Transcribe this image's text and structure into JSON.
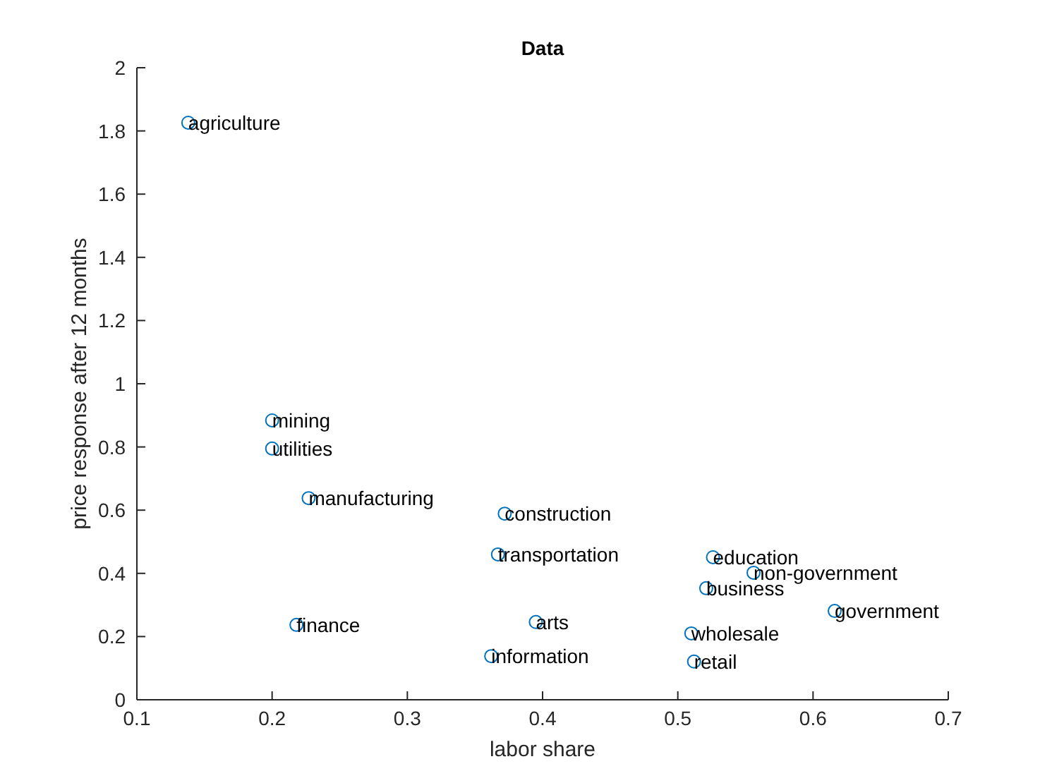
{
  "chart_data": {
    "type": "scatter",
    "title": "Data",
    "xlabel": "labor share",
    "ylabel": "price response after 12 months",
    "x": [
      0.138,
      0.2,
      0.2,
      0.227,
      0.218,
      0.372,
      0.367,
      0.395,
      0.362,
      0.526,
      0.556,
      0.521,
      0.616,
      0.51,
      0.512
    ],
    "series": [
      {
        "color": "#0072bd",
        "values": [
          1.826,
          0.884,
          0.795,
          0.638,
          0.237,
          0.589,
          0.46,
          0.246,
          0.138,
          0.451,
          0.402,
          0.353,
          0.281,
          0.21,
          0.121
        ]
      }
    ],
    "annotations": [
      {
        "text": "agriculture",
        "x": 0.138,
        "y": 1.826
      },
      {
        "text": "mining",
        "x": 0.2,
        "y": 0.884
      },
      {
        "text": "utilities",
        "x": 0.2,
        "y": 0.795
      },
      {
        "text": "manufacturing",
        "x": 0.227,
        "y": 0.638
      },
      {
        "text": "finance",
        "x": 0.218,
        "y": 0.237
      },
      {
        "text": "construction",
        "x": 0.372,
        "y": 0.589
      },
      {
        "text": "transportation",
        "x": 0.367,
        "y": 0.46
      },
      {
        "text": "arts",
        "x": 0.395,
        "y": 0.246
      },
      {
        "text": "information",
        "x": 0.362,
        "y": 0.138
      },
      {
        "text": "education",
        "x": 0.526,
        "y": 0.451
      },
      {
        "text": "non-government",
        "x": 0.556,
        "y": 0.402
      },
      {
        "text": "business",
        "x": 0.521,
        "y": 0.353
      },
      {
        "text": "government",
        "x": 0.616,
        "y": 0.281
      },
      {
        "text": "wholesale",
        "x": 0.51,
        "y": 0.21
      },
      {
        "text": "retail",
        "x": 0.512,
        "y": 0.121
      }
    ],
    "xlim": [
      0.1,
      0.7
    ],
    "xticks": [
      0.1,
      0.2,
      0.3,
      0.4,
      0.5,
      0.6,
      0.7
    ],
    "ylim": [
      0,
      2
    ],
    "yticks": [
      0,
      0.2,
      0.4,
      0.6,
      0.8,
      1,
      1.2,
      1.4,
      1.6,
      1.8,
      2
    ],
    "marker": "circle",
    "grid": false
  }
}
